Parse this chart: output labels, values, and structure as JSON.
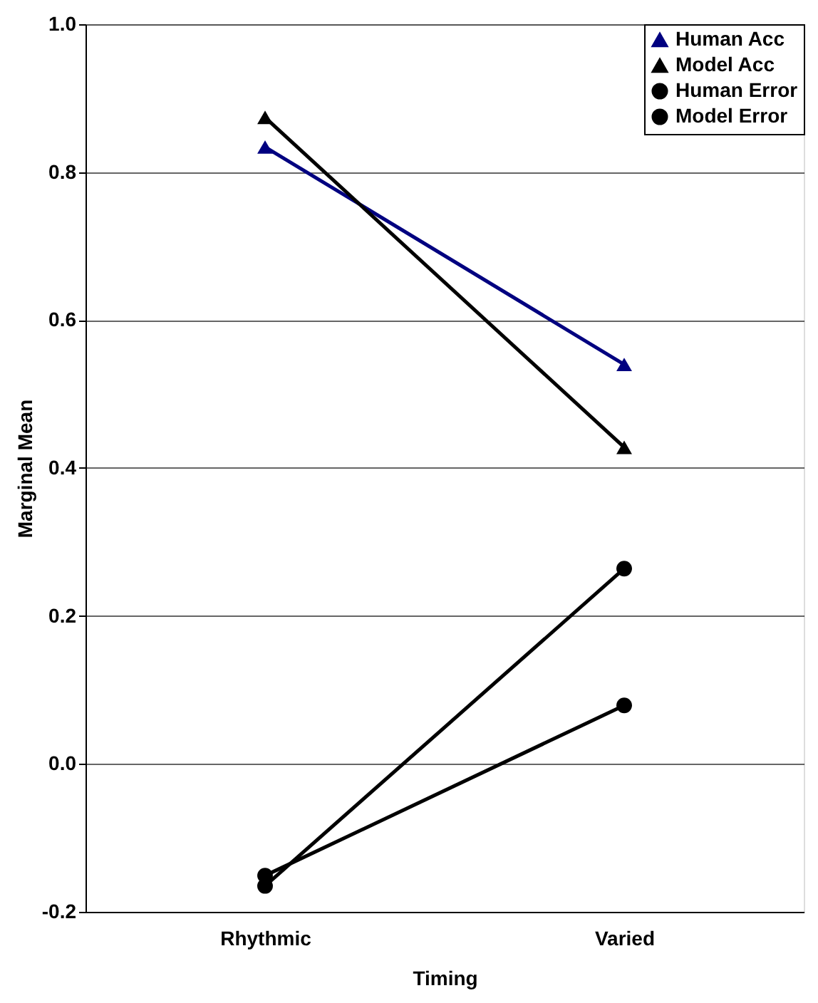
{
  "chart_data": {
    "type": "line",
    "xlabel": "Timing",
    "ylabel": "Marginal Mean",
    "categories": [
      "Rhythmic",
      "Varied"
    ],
    "series": [
      {
        "name": "Human Acc",
        "color": "#000080",
        "marker": "triangle",
        "values": [
          0.834,
          0.54
        ]
      },
      {
        "name": "Model Acc",
        "color": "#000000",
        "marker": "triangle",
        "values": [
          0.874,
          0.428
        ]
      },
      {
        "name": "Human Error",
        "color": "#000000",
        "marker": "circle",
        "values": [
          -0.165,
          0.264
        ]
      },
      {
        "name": "Model Error",
        "color": "#000000",
        "marker": "circle",
        "values": [
          -0.151,
          0.079
        ]
      }
    ],
    "ylim": [
      -0.2,
      1.0
    ],
    "yticks": [
      {
        "value": -0.2,
        "label": "-0.2"
      },
      {
        "value": 0,
        "label": "0.0"
      },
      0.2,
      0.4,
      0.6,
      0.8,
      {
        "value": 1.0,
        "label": "1.0"
      }
    ],
    "grid": "y",
    "legend": "top right",
    "line_style": "solid"
  }
}
